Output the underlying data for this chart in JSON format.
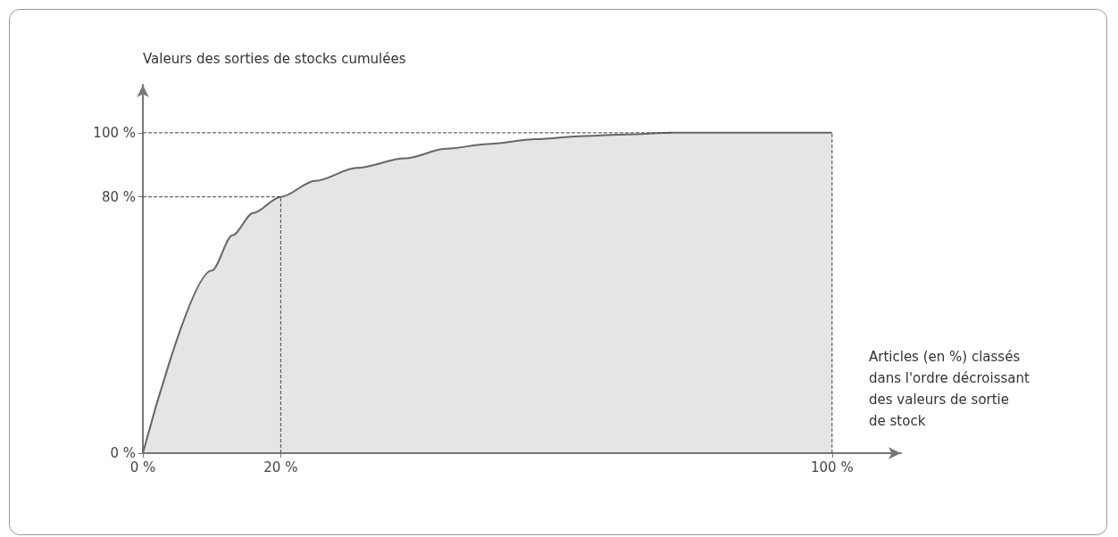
{
  "chart_data": {
    "type": "area",
    "ylabel": "Valeurs des sorties de stocks cumulées",
    "xlabel": "Articles (en %) classés\ndans l'ordre décroissant\ndes valeurs de sortie\nde stock",
    "x": [
      0,
      10,
      13,
      16,
      20,
      25,
      31,
      38,
      44,
      50,
      57,
      64,
      70,
      77,
      83,
      90,
      100
    ],
    "series": [
      {
        "color": "#666666",
        "values": [
          0,
          57,
          68,
          75,
          80,
          85,
          89,
          92,
          95,
          96.5,
          98,
          99,
          99.5,
          100,
          100,
          100,
          100
        ]
      }
    ],
    "xlim": [
      0,
      110
    ],
    "ylim": [
      0,
      115
    ],
    "xticks": [
      {
        "value": 0,
        "label": "0 %"
      },
      {
        "value": 20,
        "label": "20 %"
      },
      {
        "value": 100,
        "label": "100 %"
      }
    ],
    "yticks": [
      {
        "value": 0,
        "label": "0 %"
      },
      {
        "value": 80,
        "label": "80 %"
      },
      {
        "value": 100,
        "label": "100 %"
      }
    ],
    "ref_lines": [
      {
        "axis": "y",
        "value": 100,
        "line_style": "dashed"
      },
      {
        "axis": "y",
        "value": 80,
        "line_style": "dashed"
      },
      {
        "axis": "x",
        "value": 20,
        "line_style": "dashed"
      },
      {
        "axis": "x",
        "value": 100,
        "line_style": "dashed"
      }
    ],
    "grid": false,
    "marker": "none",
    "line_style": "solid"
  }
}
